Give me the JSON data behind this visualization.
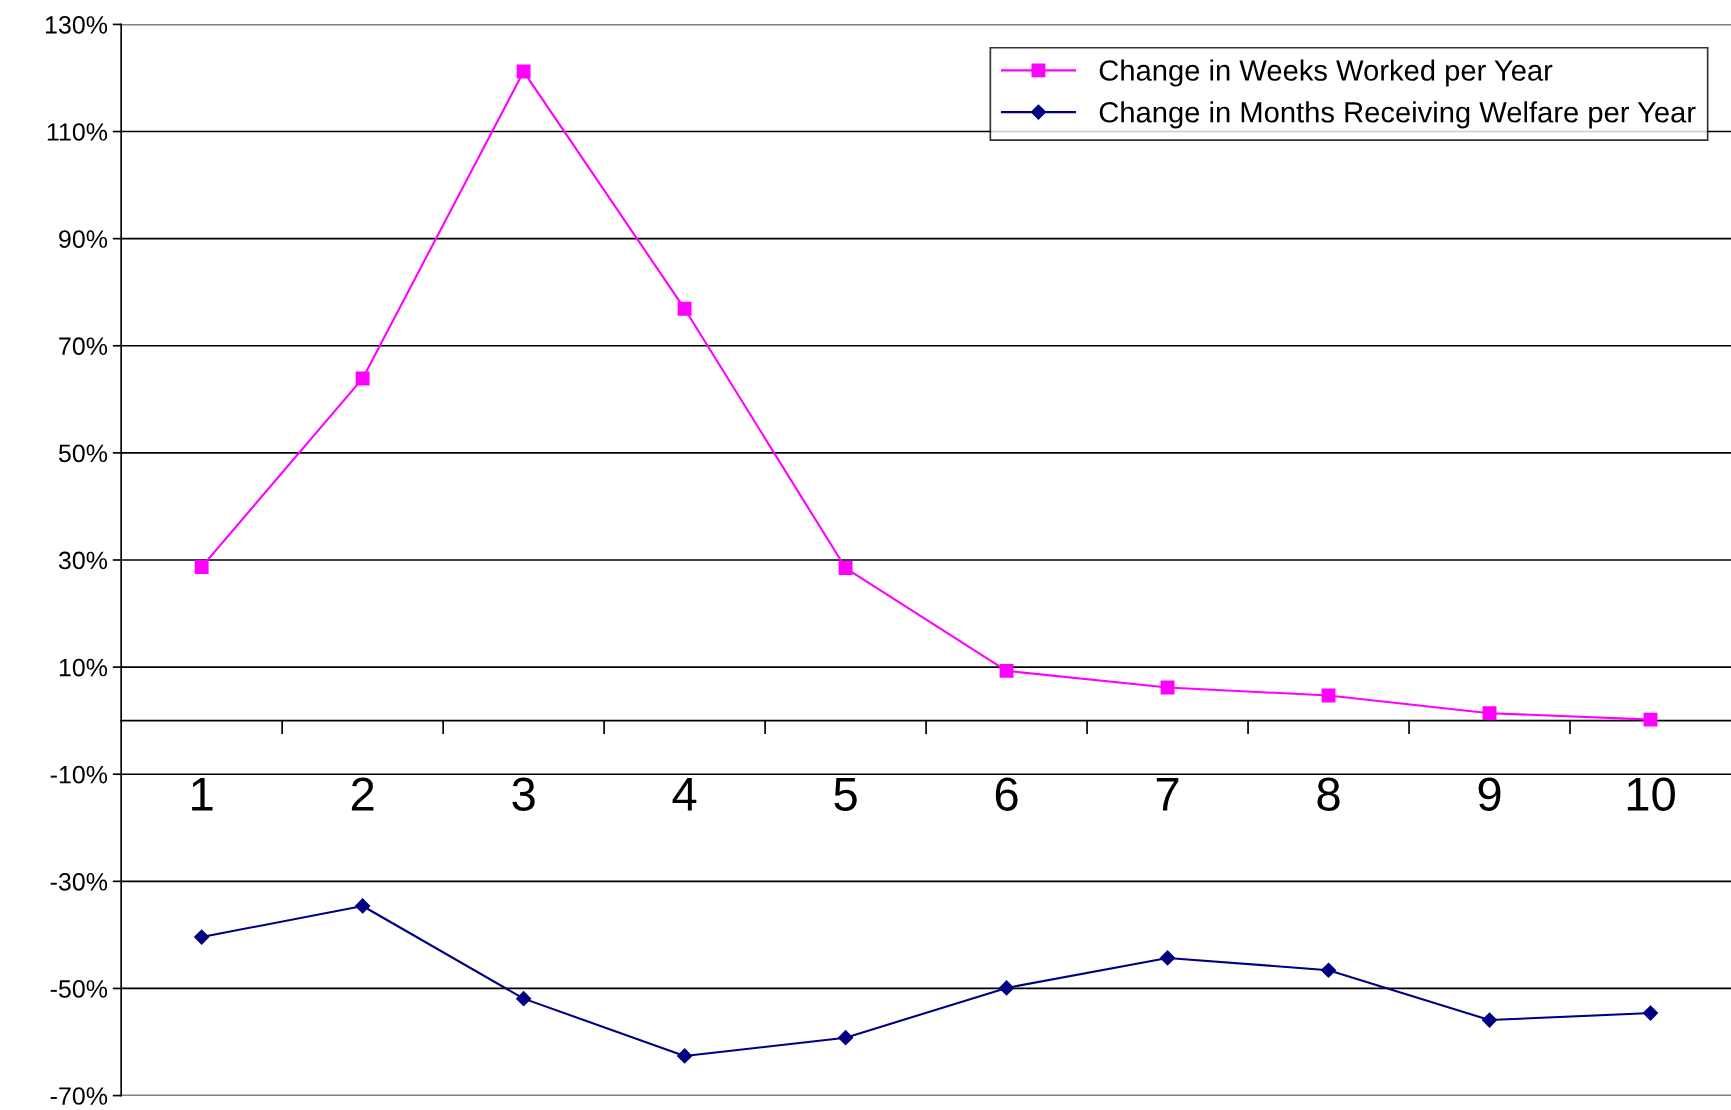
{
  "chart_data": {
    "type": "line",
    "categories": [
      "1",
      "2",
      "3",
      "4",
      "5",
      "6",
      "7",
      "8",
      "9",
      "10"
    ],
    "series": [
      {
        "name": "Change in Weeks Worked per Year",
        "color": "#ff00ff",
        "marker": "square",
        "values": [
          28.7,
          63.9,
          121.2,
          76.9,
          28.5,
          9.3,
          6.2,
          4.7,
          1.4,
          0.2
        ]
      },
      {
        "name": "Change in Months Receiving Welfare per Year",
        "color": "#000080",
        "marker": "diamond",
        "values": [
          -40.4,
          -34.6,
          -51.9,
          -62.6,
          -59.2,
          -49.9,
          -44.3,
          -46.6,
          -55.9,
          -54.6
        ]
      }
    ],
    "ylim": [
      -70,
      130
    ],
    "yticks": [
      {
        "value": -70,
        "label": "-70%"
      },
      {
        "value": -50,
        "label": "-50%"
      },
      {
        "value": -30,
        "label": "-30%"
      },
      {
        "value": -10,
        "label": "-10%"
      },
      {
        "value": 10,
        "label": "10%"
      },
      {
        "value": 30,
        "label": "30%"
      },
      {
        "value": 50,
        "label": "50%"
      },
      {
        "value": 70,
        "label": "70%"
      },
      {
        "value": 90,
        "label": "90%"
      },
      {
        "value": 110,
        "label": "110%"
      },
      {
        "value": 130,
        "label": "130%"
      }
    ],
    "grid": "y",
    "legend": "top right",
    "line_style": "solid"
  }
}
